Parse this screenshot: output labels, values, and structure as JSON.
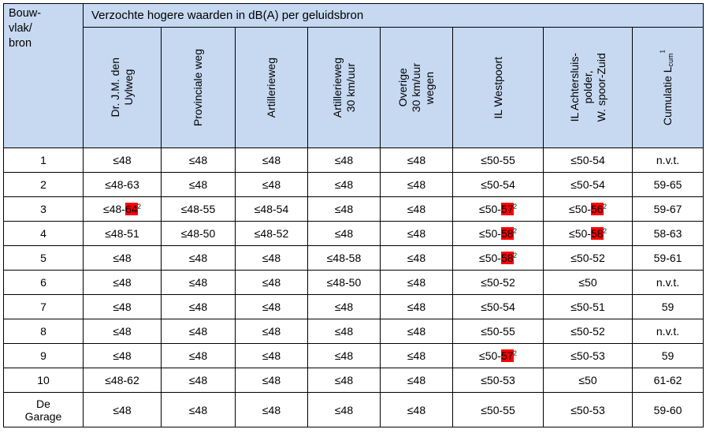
{
  "table": {
    "corner_lines": [
      "Bouw-",
      "vlak/",
      "bron"
    ],
    "group_header": "Verzochte hogere waarden in dB(A) per geluidsbron",
    "columns": [
      {
        "lines": [
          "Dr. J.M. den",
          "Uylweg"
        ]
      },
      {
        "lines": [
          "Provinciale weg"
        ]
      },
      {
        "lines": [
          "Artillerieweg"
        ]
      },
      {
        "lines": [
          "Artillerieweg",
          "30 km/uur"
        ]
      },
      {
        "lines": [
          "Overige",
          "30 km/uur",
          "wegen"
        ]
      },
      {
        "lines": [
          "IL Westpoort"
        ]
      },
      {
        "lines": [
          "IL Achtersluis-",
          "polder,",
          "W. spoor-Zuid"
        ]
      },
      {
        "lines": [
          "Cumulatie L"
        ],
        "subscript": "cum",
        "superscript": "1"
      }
    ],
    "rows": [
      {
        "label": [
          "1"
        ],
        "cells": [
          {
            "pre": "≤48"
          },
          {
            "pre": "≤48"
          },
          {
            "pre": "≤48"
          },
          {
            "pre": "≤48"
          },
          {
            "pre": "≤48"
          },
          {
            "pre": "≤50-55"
          },
          {
            "pre": "≤50-54"
          },
          {
            "pre": "n.v.t."
          }
        ]
      },
      {
        "label": [
          "2"
        ],
        "cells": [
          {
            "pre": "≤48-63"
          },
          {
            "pre": "≤48"
          },
          {
            "pre": "≤48"
          },
          {
            "pre": "≤48"
          },
          {
            "pre": "≤48"
          },
          {
            "pre": "≤50-54"
          },
          {
            "pre": "≤50-54"
          },
          {
            "pre": "59-65"
          }
        ]
      },
      {
        "label": [
          "3"
        ],
        "cells": [
          {
            "pre": "≤48-",
            "hl": "64",
            "sup": "2"
          },
          {
            "pre": "≤48-55"
          },
          {
            "pre": "≤48-54"
          },
          {
            "pre": "≤48"
          },
          {
            "pre": "≤48"
          },
          {
            "pre": "≤50-",
            "hl": "57",
            "sup": "2"
          },
          {
            "pre": "≤50-",
            "hl": "56",
            "sup": "2"
          },
          {
            "pre": "59-67"
          }
        ]
      },
      {
        "label": [
          "4"
        ],
        "cells": [
          {
            "pre": "≤48-51"
          },
          {
            "pre": "≤48-50"
          },
          {
            "pre": "≤48-52"
          },
          {
            "pre": "≤48"
          },
          {
            "pre": "≤48"
          },
          {
            "pre": "≤50-",
            "hl": "58",
            "sup": "2"
          },
          {
            "pre": "≤50-",
            "hl": "58",
            "sup": "2"
          },
          {
            "pre": "58-63"
          }
        ]
      },
      {
        "label": [
          "5"
        ],
        "cells": [
          {
            "pre": "≤48"
          },
          {
            "pre": "≤48"
          },
          {
            "pre": "≤48"
          },
          {
            "pre": "≤48-58"
          },
          {
            "pre": "≤48"
          },
          {
            "pre": "≤50-",
            "hl": "58",
            "sup": "2"
          },
          {
            "pre": "≤50-52"
          },
          {
            "pre": "59-61"
          }
        ]
      },
      {
        "label": [
          "6"
        ],
        "cells": [
          {
            "pre": "≤48"
          },
          {
            "pre": "≤48"
          },
          {
            "pre": "≤48"
          },
          {
            "pre": "≤48-50"
          },
          {
            "pre": "≤48"
          },
          {
            "pre": "≤50-52"
          },
          {
            "pre": "≤50"
          },
          {
            "pre": "n.v.t."
          }
        ]
      },
      {
        "label": [
          "7"
        ],
        "cells": [
          {
            "pre": "≤48"
          },
          {
            "pre": "≤48"
          },
          {
            "pre": "≤48"
          },
          {
            "pre": "≤48"
          },
          {
            "pre": "≤48"
          },
          {
            "pre": "≤50-54"
          },
          {
            "pre": "≤50-51"
          },
          {
            "pre": "59"
          }
        ]
      },
      {
        "label": [
          "8"
        ],
        "cells": [
          {
            "pre": "≤48"
          },
          {
            "pre": "≤48"
          },
          {
            "pre": "≤48"
          },
          {
            "pre": "≤48"
          },
          {
            "pre": "≤48"
          },
          {
            "pre": "≤50-55"
          },
          {
            "pre": "≤50-52"
          },
          {
            "pre": "n.v.t."
          }
        ]
      },
      {
        "label": [
          "9"
        ],
        "cells": [
          {
            "pre": "≤48"
          },
          {
            "pre": "≤48"
          },
          {
            "pre": "≤48"
          },
          {
            "pre": "≤48"
          },
          {
            "pre": "≤48"
          },
          {
            "pre": "≤50-",
            "hl": "57",
            "sup": "2"
          },
          {
            "pre": "≤50-53"
          },
          {
            "pre": "59"
          }
        ]
      },
      {
        "label": [
          "10"
        ],
        "cells": [
          {
            "pre": "≤48-62"
          },
          {
            "pre": "≤48"
          },
          {
            "pre": "≤48"
          },
          {
            "pre": "≤48"
          },
          {
            "pre": "≤48"
          },
          {
            "pre": "≤50-53"
          },
          {
            "pre": "≤50"
          },
          {
            "pre": "61-62"
          }
        ]
      },
      {
        "label": [
          "De",
          "Garage"
        ],
        "cells": [
          {
            "pre": "≤48"
          },
          {
            "pre": "≤48"
          },
          {
            "pre": "≤48"
          },
          {
            "pre": "≤48"
          },
          {
            "pre": "≤48"
          },
          {
            "pre": "≤50-55"
          },
          {
            "pre": "≤50-53"
          },
          {
            "pre": "59-60"
          }
        ]
      }
    ]
  },
  "colors": {
    "header_bg": "#c6d9f1",
    "highlight": "#ff0000",
    "border": "#000000"
  }
}
